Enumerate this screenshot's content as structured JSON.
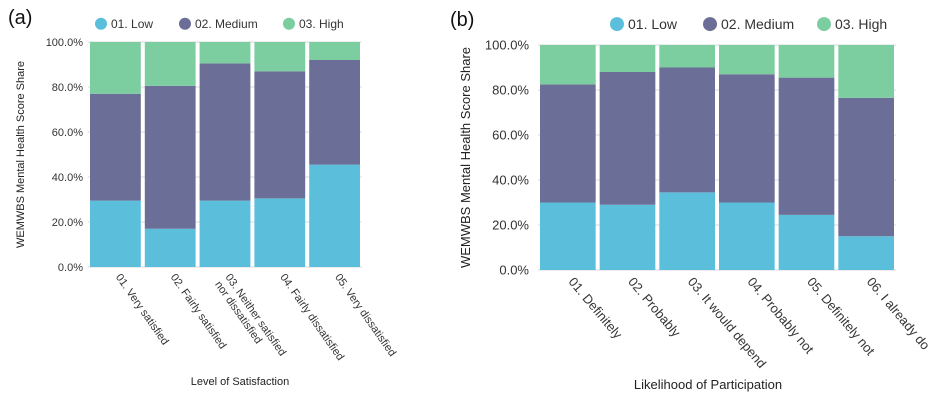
{
  "colors": {
    "low": "#5bbfdc",
    "medium": "#6b6e96",
    "high": "#7ccd9f",
    "grid": "#d9d9d9"
  },
  "chart_data": [
    {
      "panel_label": "(a)",
      "type": "bar",
      "stacked": true,
      "categories": [
        "01. Very satisfied",
        "02. Fairly satisfied",
        "03. Neither satisfied\nnor dissatisfied",
        "04. Fairly dissatisfied",
        "05. Very dissatisfied"
      ],
      "series": [
        {
          "name": "01. Low",
          "color": "#5bbfdc",
          "values": [
            29.5,
            17.0,
            29.5,
            30.5,
            45.5
          ]
        },
        {
          "name": "02. Medium",
          "color": "#6b6e96",
          "values": [
            47.5,
            63.5,
            61.0,
            56.5,
            46.5
          ]
        },
        {
          "name": "03. High",
          "color": "#7ccd9f",
          "values": [
            23.0,
            19.5,
            9.5,
            13.0,
            8.0
          ]
        }
      ],
      "ylabel": "WEMWBS Mental Health Score Share",
      "xlabel": "Level of Satisfaction",
      "ylim": [
        0,
        100
      ],
      "yticks": [
        "0.0%",
        "20.0%",
        "40.0%",
        "60.0%",
        "80.0%",
        "100.0%"
      ],
      "legend_position": "top",
      "grid": true
    },
    {
      "panel_label": "(b)",
      "type": "bar",
      "stacked": true,
      "categories": [
        "01. Definitely",
        "02. Probably",
        "03. It would depend",
        "04. Probably not",
        "05. Definitely not",
        "06. I already do"
      ],
      "series": [
        {
          "name": "01. Low",
          "color": "#5bbfdc",
          "values": [
            30.0,
            29.0,
            34.5,
            30.0,
            24.5,
            15.0
          ]
        },
        {
          "name": "02. Medium",
          "color": "#6b6e96",
          "values": [
            52.5,
            59.0,
            55.5,
            57.0,
            61.0,
            61.5
          ]
        },
        {
          "name": "03. High",
          "color": "#7ccd9f",
          "values": [
            17.5,
            12.0,
            10.0,
            13.0,
            14.5,
            23.5
          ]
        }
      ],
      "ylabel": "WEMWBS Mental Health Score Share",
      "xlabel": "Likelihood of Participation",
      "ylim": [
        0,
        100
      ],
      "yticks": [
        "0.0%",
        "20.0%",
        "40.0%",
        "60.0%",
        "80.0%",
        "100.0%"
      ],
      "legend_position": "top",
      "grid": true
    }
  ]
}
